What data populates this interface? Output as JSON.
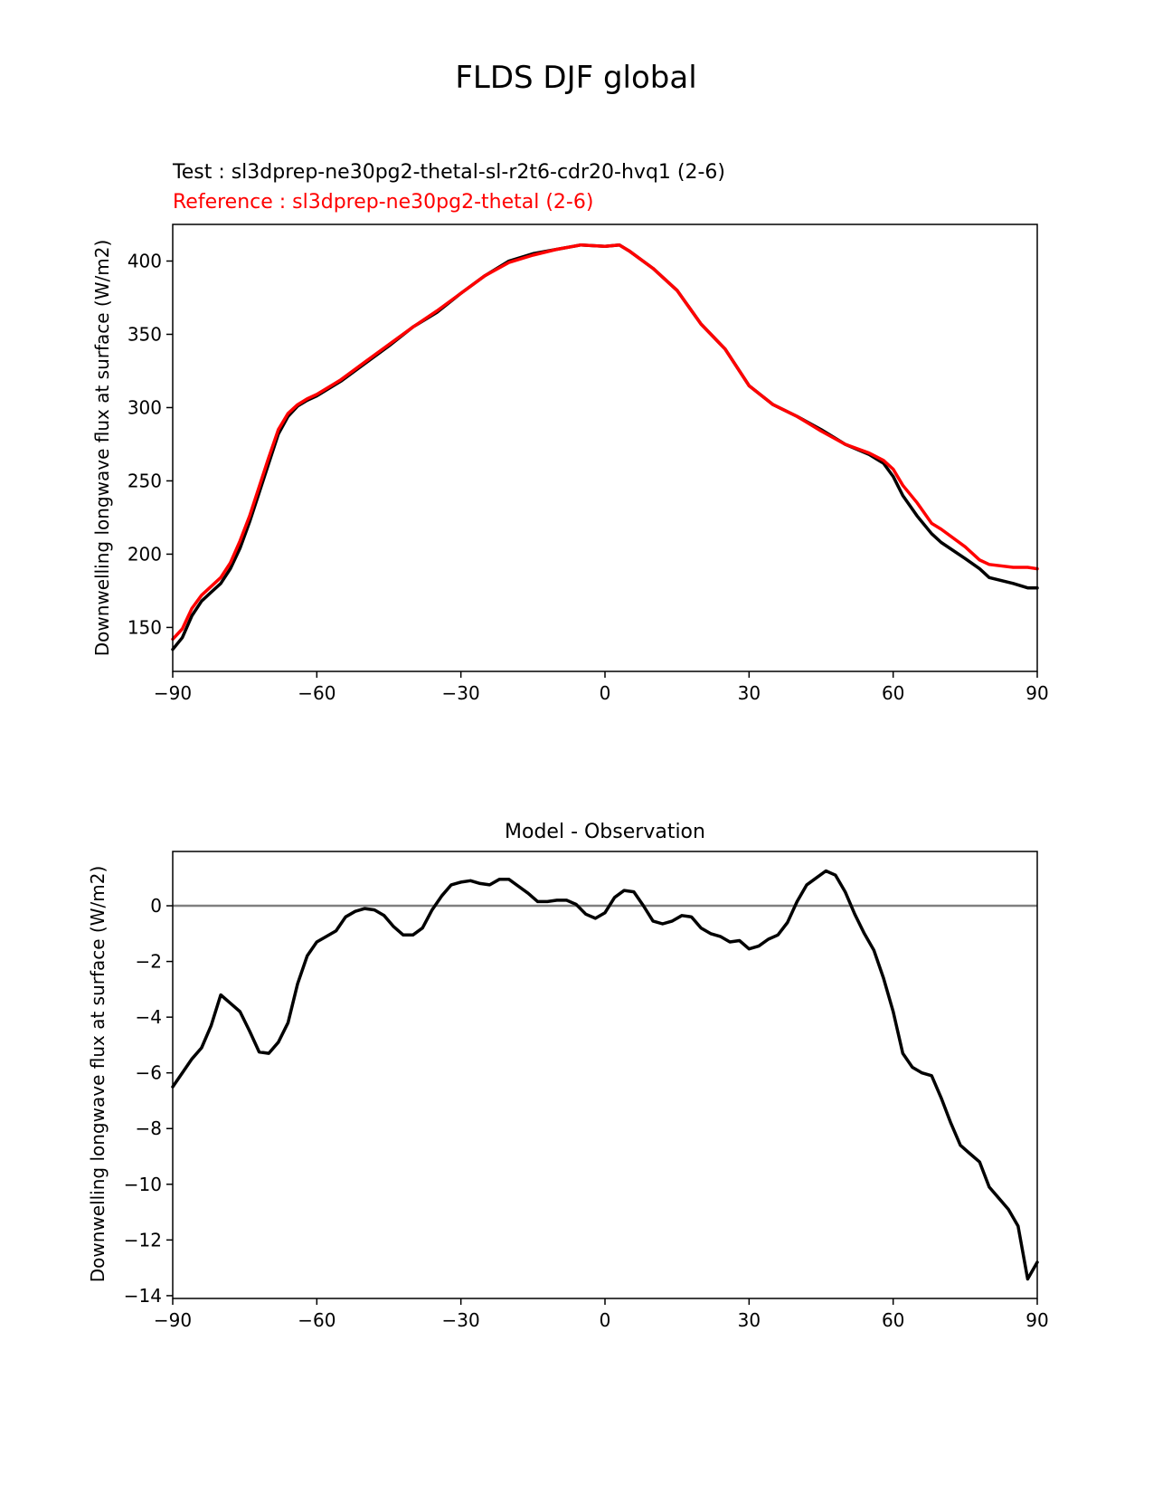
{
  "suptitle": "FLDS DJF global",
  "chart_data": [
    {
      "type": "line",
      "test_label": "Test : sl3dprep-ne30pg2-thetal-sl-r2t6-cdr20-hvq1 (2-6)",
      "ref_label": "Reference : sl3dprep-ne30pg2-thetal (2-6)",
      "xlabel": "",
      "ylabel": "Downwelling longwave flux at surface (W/m2)",
      "xlim": [
        -90,
        90
      ],
      "ylim": [
        120,
        425
      ],
      "xticks": [
        -90,
        -60,
        -30,
        0,
        30,
        60,
        90
      ],
      "xtick_labels": [
        "−90",
        "−60",
        "−30",
        "0",
        "30",
        "60",
        "90"
      ],
      "yticks": [
        150,
        200,
        250,
        300,
        350,
        400
      ],
      "ytick_labels": [
        "150",
        "200",
        "250",
        "300",
        "350",
        "400"
      ],
      "series": [
        {
          "name": "Test",
          "color": "#000000",
          "x": [
            -90,
            -88,
            -86,
            -84,
            -82,
            -80,
            -78,
            -76,
            -74,
            -72,
            -70,
            -68,
            -66,
            -64,
            -62,
            -60,
            -55,
            -50,
            -45,
            -40,
            -35,
            -30,
            -25,
            -20,
            -15,
            -10,
            -5,
            0,
            3,
            5,
            10,
            15,
            20,
            25,
            30,
            35,
            40,
            45,
            50,
            55,
            58,
            60,
            62,
            65,
            68,
            70,
            75,
            78,
            80,
            85,
            88,
            90
          ],
          "y": [
            135,
            143,
            158,
            168,
            174,
            180,
            190,
            204,
            222,
            242,
            262,
            282,
            294,
            301,
            305,
            308,
            318,
            330,
            342,
            355,
            365,
            378,
            390,
            400,
            405,
            408,
            411,
            410,
            411,
            407,
            395,
            380,
            357,
            340,
            315,
            302,
            294,
            285,
            275,
            268,
            262,
            253,
            240,
            226,
            214,
            208,
            197,
            190,
            184,
            180,
            177,
            177
          ]
        },
        {
          "name": "Reference",
          "color": "#ff0000",
          "x": [
            -90,
            -88,
            -86,
            -84,
            -82,
            -80,
            -78,
            -76,
            -74,
            -72,
            -70,
            -68,
            -66,
            -64,
            -62,
            -60,
            -55,
            -50,
            -45,
            -40,
            -35,
            -30,
            -25,
            -20,
            -15,
            -10,
            -5,
            0,
            3,
            5,
            10,
            15,
            20,
            25,
            30,
            35,
            40,
            45,
            50,
            55,
            58,
            60,
            62,
            65,
            68,
            70,
            75,
            78,
            80,
            85,
            88,
            90
          ],
          "y": [
            142,
            149,
            163,
            172,
            178,
            184,
            194,
            209,
            226,
            246,
            266,
            285,
            296,
            302,
            306,
            309,
            319,
            331,
            343,
            355,
            366,
            378,
            390,
            399,
            404,
            408,
            411,
            410,
            411,
            407,
            395,
            380,
            357,
            340,
            315,
            302,
            294,
            284,
            275,
            269,
            264,
            258,
            247,
            235,
            221,
            217,
            205,
            196,
            193,
            191,
            191,
            190
          ]
        }
      ]
    },
    {
      "type": "line",
      "title": "Model - Observation",
      "xlabel": "",
      "ylabel": "Downwelling longwave flux at surface (W/m2)",
      "xlim": [
        -90,
        90
      ],
      "ylim": [
        -14.1,
        1.95
      ],
      "xticks": [
        -90,
        -60,
        -30,
        0,
        30,
        60,
        90
      ],
      "xtick_labels": [
        "−90",
        "−60",
        "−30",
        "0",
        "30",
        "60",
        "90"
      ],
      "yticks": [
        0,
        -2,
        -4,
        -6,
        -8,
        -10,
        -12,
        -14
      ],
      "ytick_labels": [
        "0",
        "−2",
        "−4",
        "−6",
        "−8",
        "−10",
        "−12",
        "−14"
      ],
      "zero_line": 0,
      "zero_line_color": "#808080",
      "series": [
        {
          "name": "Model - Observation",
          "color": "#000000",
          "x": [
            -90,
            -88,
            -86,
            -84,
            -82,
            -80,
            -78,
            -76,
            -74,
            -72,
            -70,
            -68,
            -66,
            -64,
            -62,
            -60,
            -58,
            -56,
            -54,
            -52,
            -50,
            -48,
            -46,
            -44,
            -42,
            -40,
            -38,
            -36,
            -34,
            -32,
            -30,
            -28,
            -26,
            -24,
            -22,
            -20,
            -18,
            -16,
            -14,
            -12,
            -10,
            -8,
            -6,
            -4,
            -2,
            0,
            2,
            4,
            6,
            8,
            10,
            12,
            14,
            16,
            18,
            20,
            22,
            24,
            26,
            28,
            30,
            32,
            34,
            36,
            38,
            40,
            42,
            44,
            46,
            48,
            50,
            52,
            54,
            56,
            58,
            60,
            62,
            64,
            66,
            68,
            70,
            72,
            74,
            76,
            78,
            80,
            82,
            84,
            86,
            88,
            90
          ],
          "y": [
            -6.5,
            -6.0,
            -5.5,
            -5.1,
            -4.3,
            -3.2,
            -3.5,
            -3.8,
            -4.5,
            -5.25,
            -5.3,
            -4.9,
            -4.2,
            -2.8,
            -1.8,
            -1.3,
            -1.1,
            -0.9,
            -0.4,
            -0.2,
            -0.1,
            -0.15,
            -0.35,
            -0.75,
            -1.05,
            -1.05,
            -0.8,
            -0.15,
            0.35,
            0.75,
            0.85,
            0.9,
            0.8,
            0.75,
            0.95,
            0.95,
            0.7,
            0.45,
            0.15,
            0.15,
            0.2,
            0.2,
            0.05,
            -0.3,
            -0.45,
            -0.25,
            0.3,
            0.55,
            0.5,
            0.0,
            -0.55,
            -0.65,
            -0.55,
            -0.35,
            -0.4,
            -0.8,
            -1.0,
            -1.1,
            -1.3,
            -1.25,
            -1.55,
            -1.45,
            -1.2,
            -1.05,
            -0.6,
            0.15,
            0.75,
            1.0,
            1.25,
            1.1,
            0.5,
            -0.3,
            -1.0,
            -1.6,
            -2.6,
            -3.8,
            -5.3,
            -5.8,
            -6.0,
            -6.1,
            -6.9,
            -7.8,
            -8.6,
            -8.9,
            -9.2,
            -10.1,
            -10.5,
            -10.9,
            -11.5,
            -13.4,
            -12.8
          ]
        }
      ]
    }
  ]
}
